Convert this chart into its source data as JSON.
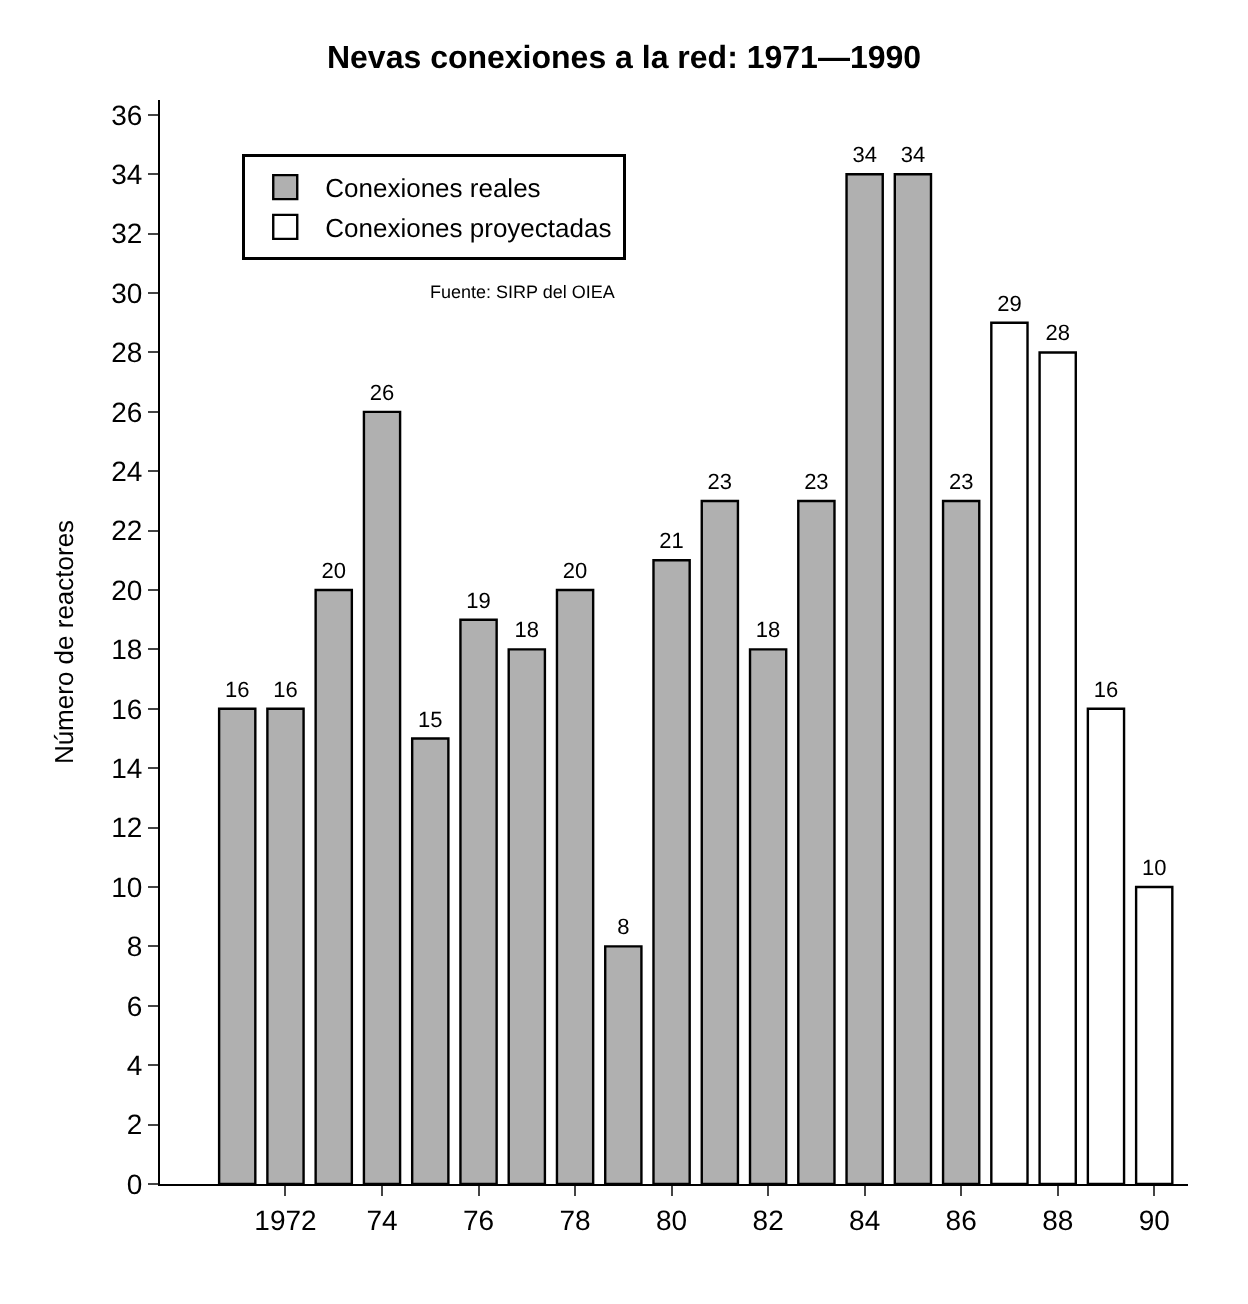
{
  "chart_data": {
    "type": "bar",
    "title": "Nevas conexiones a la red: 1971—1990",
    "ylabel": "Número de reactores",
    "categories": [
      null,
      "1972",
      null,
      "74",
      null,
      "76",
      null,
      "78",
      null,
      "80",
      null,
      "82",
      null,
      "84",
      null,
      "86",
      null,
      "88",
      null,
      "90"
    ],
    "series": [
      {
        "name": "Conexiones reales",
        "color": "#b0b0b0",
        "values": [
          16,
          16,
          20,
          26,
          15,
          19,
          18,
          20,
          8,
          21,
          23,
          18,
          23,
          34,
          34,
          23,
          null,
          null,
          null,
          null
        ]
      },
      {
        "name": "Conexiones proyectadas",
        "color": "#ffffff",
        "values": [
          null,
          null,
          null,
          null,
          null,
          null,
          null,
          null,
          null,
          null,
          null,
          null,
          null,
          null,
          null,
          null,
          29,
          28,
          16,
          10
        ]
      }
    ],
    "ylim": [
      0,
      36.5
    ],
    "yticks": [
      0,
      2,
      4,
      6,
      8,
      10,
      12,
      14,
      16,
      18,
      20,
      22,
      24,
      26,
      28,
      30,
      32,
      34,
      36
    ],
    "data_labels": true,
    "grid": false,
    "legend": "top left",
    "annotations": [
      "Fuente: SIRP del OIEA"
    ]
  }
}
